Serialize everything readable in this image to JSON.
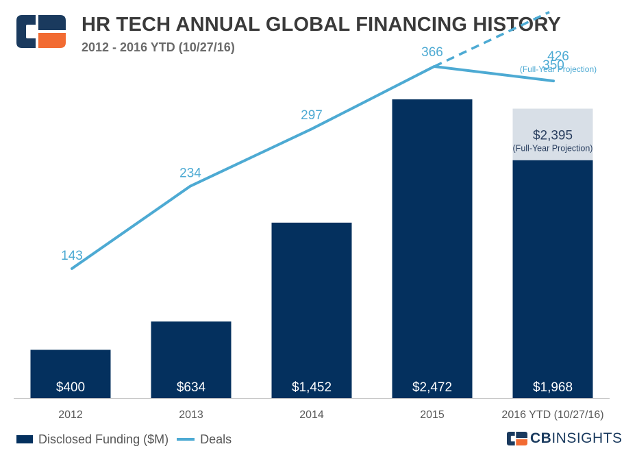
{
  "header": {
    "title": "HR TECH ANNUAL GLOBAL FINANCING HISTORY",
    "subtitle": "2012 - 2016 YTD (10/27/16)"
  },
  "colors": {
    "bar": "#04305e",
    "projection_bar": "#d8dfe7",
    "line": "#4daad3",
    "logo_blue": "#1a3a5e",
    "logo_orange": "#f26b32"
  },
  "chart_data": {
    "type": "bar",
    "title": "HR TECH ANNUAL GLOBAL FINANCING HISTORY",
    "subtitle": "2012 - 2016 YTD (10/27/16)",
    "categories": [
      "2012",
      "2013",
      "2014",
      "2015",
      "2016 YTD (10/27/16)"
    ],
    "series": [
      {
        "name": "Disclosed Funding ($M)",
        "kind": "bar",
        "values": [
          400,
          634,
          1452,
          2472,
          1968
        ],
        "labels": [
          "$400",
          "$634",
          "$1,452",
          "$2,472",
          "$1,968"
        ],
        "projection": {
          "value": 2395,
          "label": "$2,395",
          "note": "(Full-Year Projection)"
        }
      },
      {
        "name": "Deals",
        "kind": "line",
        "values": [
          143,
          234,
          297,
          366,
          350
        ],
        "labels": [
          "143",
          "234",
          "297",
          "366",
          "350"
        ],
        "projection": {
          "value": 426,
          "label": "426",
          "note": "(Full-Year Projection)"
        }
      }
    ],
    "funding_range": [
      0,
      2500
    ],
    "deals_range": [
      0,
      400
    ],
    "legend": {
      "position": "bottom-left",
      "items": [
        "Disclosed Funding ($M)",
        "Deals"
      ]
    },
    "grid": false
  },
  "brand": {
    "prefix": "CB",
    "suffix": "INSIGHTS"
  }
}
